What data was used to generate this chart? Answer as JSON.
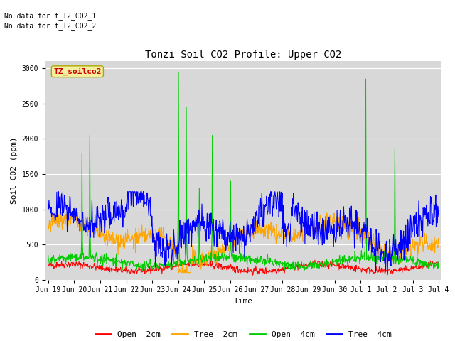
{
  "title": "Tonzi Soil CO2 Profile: Upper CO2",
  "ylabel": "Soil CO2 (ppm)",
  "xlabel": "Time",
  "annotations": [
    "No data for f_T2_CO2_1",
    "No data for f_T2_CO2_2"
  ],
  "legend_label": "TZ_soilco2",
  "legend_entries": [
    "Open -2cm",
    "Tree -2cm",
    "Open -4cm",
    "Tree -4cm"
  ],
  "legend_colors": [
    "#ff0000",
    "#ffa500",
    "#00cc00",
    "#0000ff"
  ],
  "ylim": [
    0,
    3100
  ],
  "yticks": [
    0,
    500,
    1000,
    1500,
    2000,
    2500,
    3000
  ],
  "fig_bg_color": "#ffffff",
  "plot_bg_color": "#d8d8d8",
  "n_points": 900,
  "seed": 42,
  "tick_labels": [
    "Jun 19",
    "Jun 20",
    "Jun 21",
    "Jun 22",
    "Jun 23",
    "Jun 24",
    "Jun 25",
    "Jun 26",
    "Jun 27",
    "Jun 28",
    "Jun 29",
    "Jun 30",
    "Jul 1",
    "Jul 2",
    "Jul 3",
    "Jul 4"
  ],
  "title_fontsize": 10,
  "label_fontsize": 8,
  "tick_fontsize": 7,
  "annot_fontsize": 7
}
